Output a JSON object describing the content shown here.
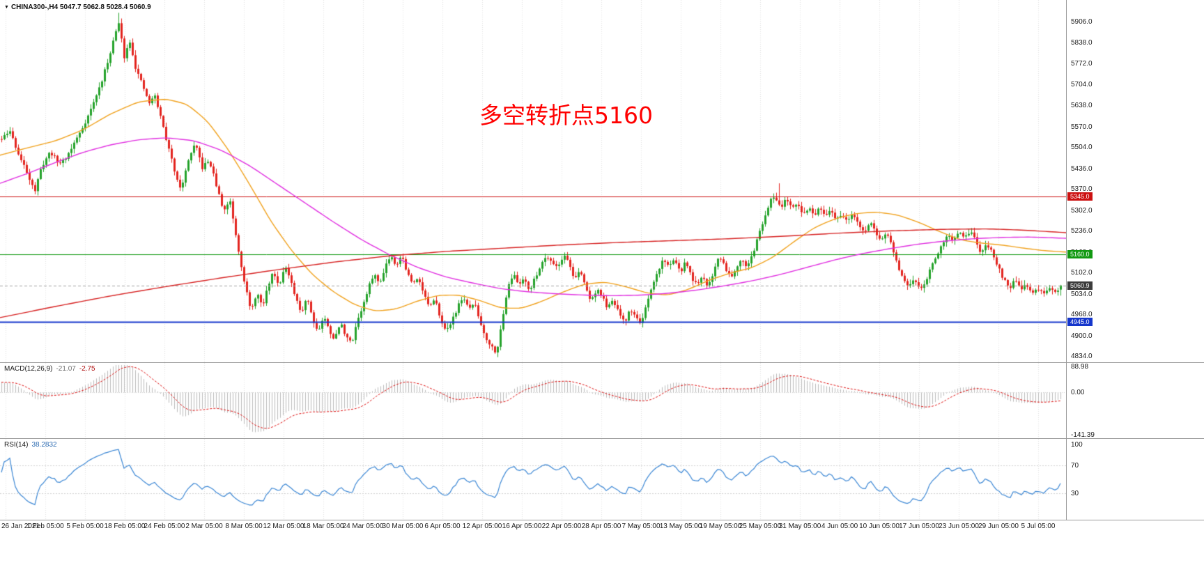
{
  "header": {
    "dropdown_icon": "▼",
    "symbol_period": "CHINA300-,H4",
    "ohlc_text": "5047.7 5062.8 5028.4 5060.9"
  },
  "annotation": {
    "text": "多空转折点5160",
    "color": "#ff0000"
  },
  "macd_panel": {
    "name": "MACD(12,26,9)",
    "main_value": "-21.07",
    "signal_value": "-2.75",
    "scale_labels": [
      "88.98",
      "0.00",
      "-141.39"
    ],
    "range": [
      -141.39,
      88.98
    ]
  },
  "rsi_panel": {
    "name": "RSI(14)",
    "value": "38.2832",
    "scale_labels": [
      "100",
      "70",
      "30"
    ],
    "levels": [
      70,
      30
    ],
    "range": [
      0,
      100
    ]
  },
  "price_axis": {
    "ticks": [
      "5906.0",
      "5838.0",
      "5772.0",
      "5704.0",
      "5638.0",
      "5570.0",
      "5504.0",
      "5436.0",
      "5370.0",
      "5302.0",
      "5236.0",
      "5168.0",
      "5102.0",
      "5034.0",
      "4968.0",
      "4900.0",
      "4834.0"
    ],
    "badges": [
      {
        "label": "5345.0",
        "value": 5345.0,
        "bg": "#cc1111"
      },
      {
        "label": "5160.0",
        "value": 5160.0,
        "bg": "#119911"
      },
      {
        "label": "5060.9",
        "value": 5060.9,
        "bg": "#3c3c3c"
      },
      {
        "label": "4945.0",
        "value": 4945.0,
        "bg": "#1536cc"
      }
    ]
  },
  "time_axis": {
    "labels": [
      "26 Jan 2021",
      "1 Feb 05:00",
      "5 Feb 05:00",
      "18 Feb 05:00",
      "24 Feb 05:00",
      "2 Mar 05:00",
      "8 Mar 05:00",
      "12 Mar 05:00",
      "18 Mar 05:00",
      "24 Mar 05:00",
      "30 Mar 05:00",
      "6 Apr 05:00",
      "12 Apr 05:00",
      "16 Apr 05:00",
      "22 Apr 05:00",
      "28 Apr 05:00",
      "7 May 05:00",
      "13 May 05:00",
      "19 May 05:00",
      "25 May 05:00",
      "31 May 05:00",
      "4 Jun 05:00",
      "10 Jun 05:00",
      "17 Jun 05:00",
      "23 Jun 05:00",
      "29 Jun 05:00",
      "5 Jul 05:00"
    ]
  },
  "chart_data": {
    "type": "candlestick",
    "symbol": "CHINA300-",
    "timeframe": "H4",
    "title": "CHINA300-,H4",
    "last_bar": {
      "open": 5047.7,
      "high": 5062.8,
      "low": 5028.4,
      "close": 5060.9
    },
    "ylim": [
      4815,
      5975
    ],
    "bar_spacing": 4,
    "price_path_anchors": [
      [
        0,
        5525
      ],
      [
        14,
        5555
      ],
      [
        28,
        5470
      ],
      [
        40,
        5415
      ],
      [
        50,
        5365
      ],
      [
        60,
        5445
      ],
      [
        72,
        5490
      ],
      [
        84,
        5450
      ],
      [
        96,
        5475
      ],
      [
        108,
        5525
      ],
      [
        120,
        5575
      ],
      [
        132,
        5635
      ],
      [
        144,
        5705
      ],
      [
        154,
        5775
      ],
      [
        162,
        5845
      ],
      [
        170,
        5900
      ],
      [
        178,
        5795
      ],
      [
        186,
        5845
      ],
      [
        194,
        5760
      ],
      [
        204,
        5700
      ],
      [
        214,
        5645
      ],
      [
        222,
        5668
      ],
      [
        232,
        5585
      ],
      [
        242,
        5495
      ],
      [
        252,
        5415
      ],
      [
        260,
        5368
      ],
      [
        270,
        5465
      ],
      [
        280,
        5512
      ],
      [
        290,
        5438
      ],
      [
        300,
        5462
      ],
      [
        310,
        5382
      ],
      [
        320,
        5300
      ],
      [
        330,
        5332
      ],
      [
        340,
        5198
      ],
      [
        350,
        5078
      ],
      [
        360,
        4972
      ],
      [
        368,
        5042
      ],
      [
        376,
        4988
      ],
      [
        384,
        5058
      ],
      [
        392,
        5108
      ],
      [
        400,
        5058
      ],
      [
        408,
        5128
      ],
      [
        416,
        5078
      ],
      [
        424,
        5018
      ],
      [
        432,
        4972
      ],
      [
        440,
        5028
      ],
      [
        448,
        4958
      ],
      [
        456,
        4912
      ],
      [
        464,
        4962
      ],
      [
        472,
        4918
      ],
      [
        480,
        4888
      ],
      [
        488,
        4942
      ],
      [
        496,
        4902
      ],
      [
        504,
        4872
      ],
      [
        512,
        4948
      ],
      [
        520,
        4992
      ],
      [
        528,
        5048
      ],
      [
        536,
        5102
      ],
      [
        544,
        5062
      ],
      [
        552,
        5122
      ],
      [
        560,
        5158
      ],
      [
        568,
        5128
      ],
      [
        576,
        5158
      ],
      [
        584,
        5102
      ],
      [
        592,
        5062
      ],
      [
        600,
        5092
      ],
      [
        608,
        5032
      ],
      [
        616,
        4992
      ],
      [
        624,
        5012
      ],
      [
        632,
        4958
      ],
      [
        640,
        4908
      ],
      [
        648,
        4952
      ],
      [
        656,
        4988
      ],
      [
        664,
        5028
      ],
      [
        672,
        4982
      ],
      [
        680,
        5008
      ],
      [
        688,
        4948
      ],
      [
        696,
        4898
      ],
      [
        704,
        4868
      ],
      [
        712,
        4848
      ],
      [
        720,
        4938
      ],
      [
        728,
        5058
      ],
      [
        736,
        5098
      ],
      [
        744,
        5062
      ],
      [
        752,
        5088
      ],
      [
        760,
        5042
      ],
      [
        768,
        5088
      ],
      [
        776,
        5128
      ],
      [
        784,
        5158
      ],
      [
        792,
        5138
      ],
      [
        800,
        5118
      ],
      [
        808,
        5158
      ],
      [
        816,
        5138
      ],
      [
        824,
        5078
      ],
      [
        832,
        5108
      ],
      [
        840,
        5058
      ],
      [
        848,
        5008
      ],
      [
        856,
        5052
      ],
      [
        864,
        5022
      ],
      [
        872,
        4988
      ],
      [
        880,
        5012
      ],
      [
        888,
        4972
      ],
      [
        896,
        4938
      ],
      [
        904,
        4988
      ],
      [
        912,
        4958
      ],
      [
        920,
        4942
      ],
      [
        928,
        4998
      ],
      [
        936,
        5058
      ],
      [
        944,
        5108
      ],
      [
        952,
        5148
      ],
      [
        960,
        5118
      ],
      [
        968,
        5152
      ],
      [
        976,
        5098
      ],
      [
        984,
        5138
      ],
      [
        992,
        5088
      ],
      [
        1000,
        5058
      ],
      [
        1008,
        5088
      ],
      [
        1016,
        5058
      ],
      [
        1024,
        5108
      ],
      [
        1032,
        5158
      ],
      [
        1040,
        5122
      ],
      [
        1048,
        5088
      ],
      [
        1056,
        5118
      ],
      [
        1064,
        5152
      ],
      [
        1072,
        5118
      ],
      [
        1080,
        5162
      ],
      [
        1088,
        5218
      ],
      [
        1096,
        5278
      ],
      [
        1104,
        5328
      ],
      [
        1112,
        5348
      ],
      [
        1120,
        5312
      ],
      [
        1128,
        5342
      ],
      [
        1136,
        5302
      ],
      [
        1144,
        5322
      ],
      [
        1152,
        5288
      ],
      [
        1160,
        5312
      ],
      [
        1168,
        5282
      ],
      [
        1176,
        5308
      ],
      [
        1184,
        5278
      ],
      [
        1192,
        5298
      ],
      [
        1200,
        5272
      ],
      [
        1208,
        5292
      ],
      [
        1216,
        5262
      ],
      [
        1224,
        5288
      ],
      [
        1232,
        5258
      ],
      [
        1240,
        5232
      ],
      [
        1248,
        5262
      ],
      [
        1256,
        5232
      ],
      [
        1264,
        5202
      ],
      [
        1272,
        5232
      ],
      [
        1280,
        5182
      ],
      [
        1288,
        5122
      ],
      [
        1296,
        5082
      ],
      [
        1304,
        5052
      ],
      [
        1312,
        5082
      ],
      [
        1320,
        5048
      ],
      [
        1328,
        5078
      ],
      [
        1336,
        5118
      ],
      [
        1344,
        5158
      ],
      [
        1352,
        5198
      ],
      [
        1360,
        5228
      ],
      [
        1368,
        5202
      ],
      [
        1376,
        5228
      ],
      [
        1384,
        5208
      ],
      [
        1392,
        5238
      ],
      [
        1400,
        5202
      ],
      [
        1408,
        5162
      ],
      [
        1416,
        5192
      ],
      [
        1424,
        5162
      ],
      [
        1432,
        5122
      ],
      [
        1440,
        5082
      ],
      [
        1448,
        5052
      ],
      [
        1456,
        5078
      ],
      [
        1464,
        5048
      ],
      [
        1472,
        5068
      ],
      [
        1480,
        5038
      ],
      [
        1488,
        5052
      ],
      [
        1496,
        5032
      ],
      [
        1504,
        5048
      ],
      [
        1512,
        5040
      ],
      [
        1520,
        5048
      ],
      [
        1530,
        5061
      ]
    ],
    "spikes": [
      [
        170,
        5934
      ],
      [
        1116,
        5388
      ],
      [
        712,
        4833
      ]
    ],
    "hlines": [
      {
        "value": 5345.0,
        "color": "#cc1111",
        "width": 1,
        "style": "solid"
      },
      {
        "value": 5160.0,
        "color": "#119911",
        "width": 1,
        "style": "solid"
      },
      {
        "value": 4945.0,
        "color": "#1536cc",
        "width": 2,
        "style": "solid"
      },
      {
        "value": 5060.9,
        "color": "#a0a0a0",
        "width": 1,
        "style": "dashed"
      }
    ],
    "moving_averages": [
      {
        "name": "ma-orange",
        "color": "#f0a11c",
        "anchors": [
          [
            0,
            5478
          ],
          [
            40,
            5502
          ],
          [
            80,
            5524
          ],
          [
            120,
            5560
          ],
          [
            160,
            5612
          ],
          [
            200,
            5650
          ],
          [
            240,
            5658
          ],
          [
            270,
            5640
          ],
          [
            300,
            5582
          ],
          [
            330,
            5488
          ],
          [
            360,
            5378
          ],
          [
            390,
            5262
          ],
          [
            420,
            5168
          ],
          [
            450,
            5092
          ],
          [
            480,
            5038
          ],
          [
            510,
            4998
          ],
          [
            540,
            4978
          ],
          [
            570,
            4986
          ],
          [
            600,
            5012
          ],
          [
            630,
            5030
          ],
          [
            660,
            5030
          ],
          [
            690,
            5012
          ],
          [
            720,
            4988
          ],
          [
            750,
            4988
          ],
          [
            780,
            5012
          ],
          [
            810,
            5042
          ],
          [
            840,
            5066
          ],
          [
            870,
            5072
          ],
          [
            900,
            5056
          ],
          [
            930,
            5036
          ],
          [
            960,
            5030
          ],
          [
            990,
            5050
          ],
          [
            1020,
            5080
          ],
          [
            1050,
            5102
          ],
          [
            1080,
            5118
          ],
          [
            1110,
            5152
          ],
          [
            1140,
            5202
          ],
          [
            1170,
            5248
          ],
          [
            1200,
            5276
          ],
          [
            1230,
            5292
          ],
          [
            1260,
            5296
          ],
          [
            1290,
            5286
          ],
          [
            1320,
            5262
          ],
          [
            1350,
            5232
          ],
          [
            1380,
            5206
          ],
          [
            1410,
            5196
          ],
          [
            1440,
            5190
          ],
          [
            1470,
            5180
          ],
          [
            1500,
            5172
          ],
          [
            1530,
            5168
          ]
        ]
      },
      {
        "name": "ma-magenta",
        "color": "#e02ee0",
        "anchors": [
          [
            0,
            5388
          ],
          [
            40,
            5420
          ],
          [
            80,
            5455
          ],
          [
            120,
            5488
          ],
          [
            160,
            5512
          ],
          [
            200,
            5528
          ],
          [
            240,
            5534
          ],
          [
            280,
            5524
          ],
          [
            320,
            5492
          ],
          [
            360,
            5442
          ],
          [
            400,
            5382
          ],
          [
            440,
            5322
          ],
          [
            480,
            5262
          ],
          [
            520,
            5206
          ],
          [
            560,
            5158
          ],
          [
            600,
            5118
          ],
          [
            640,
            5088
          ],
          [
            680,
            5068
          ],
          [
            720,
            5050
          ],
          [
            760,
            5040
          ],
          [
            800,
            5034
          ],
          [
            840,
            5030
          ],
          [
            880,
            5028
          ],
          [
            920,
            5030
          ],
          [
            960,
            5036
          ],
          [
            1000,
            5046
          ],
          [
            1040,
            5060
          ],
          [
            1080,
            5076
          ],
          [
            1120,
            5096
          ],
          [
            1160,
            5120
          ],
          [
            1200,
            5144
          ],
          [
            1240,
            5164
          ],
          [
            1280,
            5180
          ],
          [
            1320,
            5194
          ],
          [
            1360,
            5204
          ],
          [
            1400,
            5211
          ],
          [
            1440,
            5215
          ],
          [
            1480,
            5216
          ],
          [
            1530,
            5212
          ]
        ]
      },
      {
        "name": "ma-red",
        "color": "#d62020",
        "anchors": [
          [
            0,
            4958
          ],
          [
            80,
            4994
          ],
          [
            160,
            5028
          ],
          [
            240,
            5058
          ],
          [
            320,
            5086
          ],
          [
            400,
            5112
          ],
          [
            480,
            5136
          ],
          [
            560,
            5156
          ],
          [
            640,
            5170
          ],
          [
            720,
            5180
          ],
          [
            800,
            5190
          ],
          [
            880,
            5198
          ],
          [
            960,
            5204
          ],
          [
            1040,
            5210
          ],
          [
            1120,
            5218
          ],
          [
            1200,
            5228
          ],
          [
            1280,
            5236
          ],
          [
            1360,
            5241
          ],
          [
            1420,
            5242
          ],
          [
            1470,
            5238
          ],
          [
            1530,
            5230
          ]
        ]
      }
    ],
    "colors": {
      "up": "#25a22b",
      "down": "#e3241f",
      "macd_hist": "#bbbbbb",
      "macd_signal": "#dd1313",
      "rsi": "#3a86d4",
      "grid": "#e0e0e0",
      "level": "#cfcfcf"
    },
    "indicators": {
      "macd": {
        "fast": 12,
        "slow": 26,
        "signal": 9
      },
      "rsi": {
        "period": 14
      }
    }
  }
}
